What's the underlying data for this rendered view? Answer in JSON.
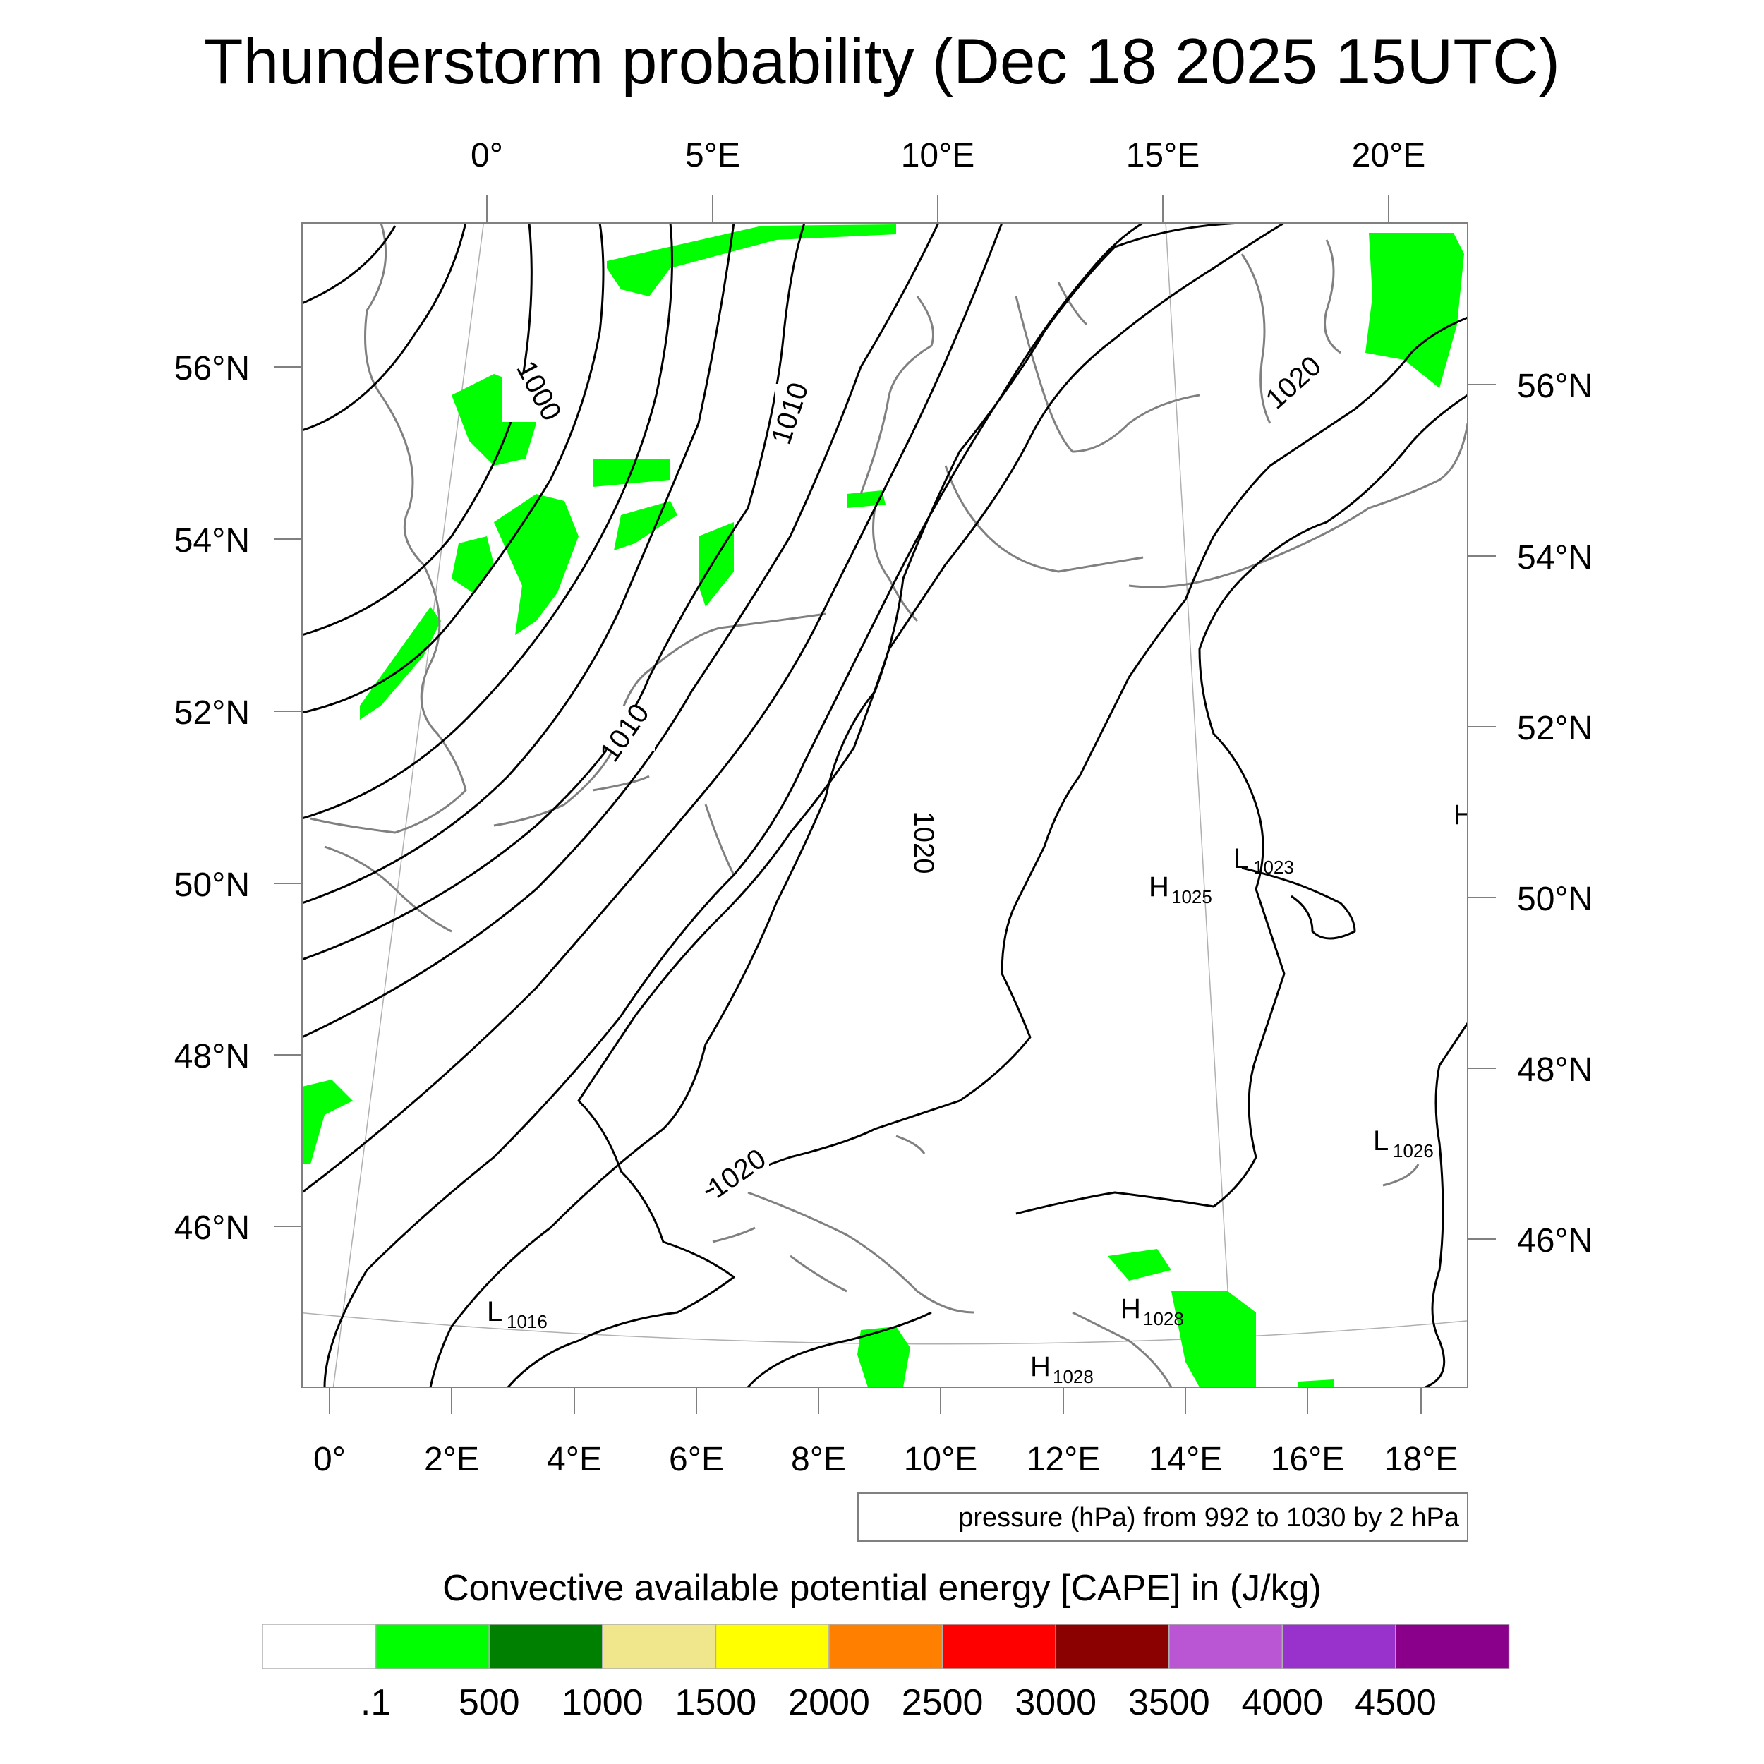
{
  "title": "Thunderstorm probability (Dec 18 2025 15UTC)",
  "map": {
    "top_lon_labels": [
      "0°",
      "5°E",
      "10°E",
      "15°E",
      "20°E"
    ],
    "bottom_lon_labels": [
      "0°",
      "2°E",
      "4°E",
      "6°E",
      "8°E",
      "10°E",
      "12°E",
      "14°E",
      "16°E",
      "18°E"
    ],
    "left_lat_labels": [
      "56°N",
      "54°N",
      "52°N",
      "50°N",
      "48°N",
      "46°N"
    ],
    "right_lat_labels": [
      "56°N",
      "54°N",
      "52°N",
      "50°N",
      "48°N",
      "46°N"
    ],
    "contour_labels": [
      "1000",
      "1010",
      "1020",
      "1010",
      "1020",
      "1020"
    ],
    "pressure_centers": [
      {
        "letter": "L",
        "value": "1023"
      },
      {
        "letter": "H",
        "value": "1025"
      },
      {
        "letter": "L",
        "value": "1026"
      },
      {
        "letter": "L",
        "value": "1016"
      },
      {
        "letter": "H",
        "value": "1028"
      },
      {
        "letter": "H",
        "value": "1028"
      },
      {
        "letter": "H",
        "value": ""
      }
    ],
    "contour_info": "pressure (hPa) from 992 to 1030 by 2 hPa",
    "colors": {
      "contour": "#000000",
      "coastline": "#808080",
      "cape_fill": "#00ff00"
    }
  },
  "colorbar": {
    "title": "Convective available potential energy [CAPE] in (J/kg)",
    "colors": [
      "#ffffff",
      "#00ff00",
      "#008000",
      "#f0e68c",
      "#ffff00",
      "#ff8000",
      "#ff0000",
      "#8b0000",
      "#ba55d3",
      "#9932cc",
      "#8b008b"
    ],
    "labels": [
      ".1",
      "500",
      "1000",
      "1500",
      "2000",
      "2500",
      "3000",
      "3500",
      "4000",
      "4500"
    ]
  }
}
